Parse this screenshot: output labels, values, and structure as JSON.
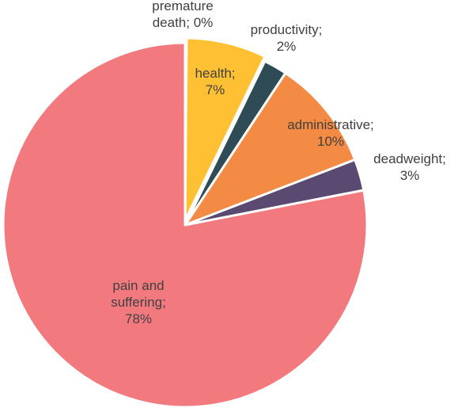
{
  "chart_data": {
    "type": "pie",
    "title": "",
    "slices": [
      {
        "label": "premature death",
        "value": 0,
        "display": "0%",
        "label_lines": [
          "premature",
          "death; 0%"
        ],
        "color": "#ffffff"
      },
      {
        "label": "health",
        "value": 7,
        "display": "7%",
        "label_lines": [
          "health;",
          "7%"
        ],
        "color": "#FFC033"
      },
      {
        "label": "productivity",
        "value": 2,
        "display": "2%",
        "label_lines": [
          "productivity;",
          "2%"
        ],
        "color": "#2F4B56"
      },
      {
        "label": "administrative",
        "value": 10,
        "display": "10%",
        "label_lines": [
          "administrative;",
          "10%"
        ],
        "color": "#F38B45"
      },
      {
        "label": "deadweight",
        "value": 3,
        "display": "3%",
        "label_lines": [
          "deadweight;",
          "3%"
        ],
        "color": "#5A4A72"
      },
      {
        "label": "pain and suffering",
        "value": 78,
        "display": "78%",
        "label_lines": [
          "pain and",
          "suffering;",
          "78%"
        ],
        "color": "#F2797E"
      }
    ]
  }
}
